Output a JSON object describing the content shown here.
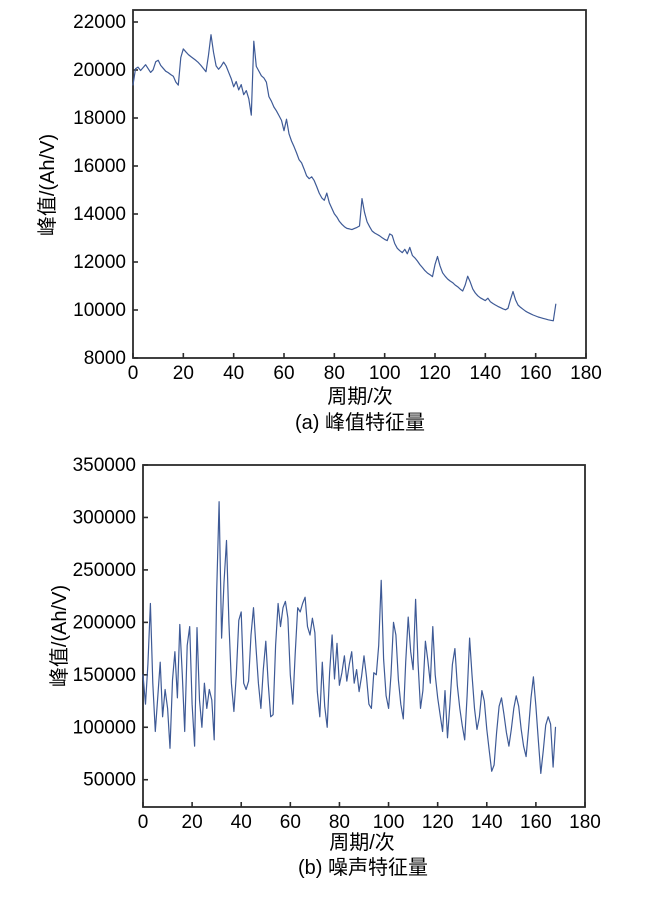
{
  "figure": {
    "background": "#ffffff",
    "line_color": "#3e5a96",
    "axis_color": "#2b2b2b",
    "text_color": "#000000"
  },
  "chart_data": [
    {
      "type": "line",
      "title": "(a) 峰值特征量",
      "xlabel": "周期/次",
      "ylabel": "峰值/(Ah/V)",
      "legend": "none",
      "grid": false,
      "xlim": [
        0,
        180
      ],
      "ylim": [
        8000,
        22500
      ],
      "xticks": [
        0,
        20,
        40,
        60,
        80,
        100,
        120,
        140,
        160,
        180
      ],
      "yticks": [
        8000,
        10000,
        12000,
        14000,
        16000,
        18000,
        20000,
        22000
      ],
      "x_start": 0,
      "x_step": 1,
      "values": [
        19380,
        20050,
        20120,
        19980,
        20100,
        20220,
        20060,
        19900,
        20010,
        20340,
        20410,
        20190,
        20070,
        19950,
        19890,
        19810,
        19740,
        19500,
        19370,
        20520,
        20880,
        20760,
        20640,
        20560,
        20480,
        20400,
        20310,
        20190,
        20060,
        19930,
        20620,
        21470,
        20740,
        20170,
        20030,
        20160,
        20330,
        20170,
        19910,
        19640,
        19300,
        19520,
        19170,
        19390,
        18970,
        19140,
        18800,
        18120,
        21200,
        20150,
        19960,
        19760,
        19670,
        19490,
        18890,
        18700,
        18460,
        18300,
        18100,
        17900,
        17470,
        17950,
        17340,
        17040,
        16800,
        16540,
        16260,
        16130,
        15870,
        15590,
        15470,
        15550,
        15390,
        15140,
        14870,
        14670,
        14570,
        14870,
        14470,
        14240,
        14010,
        13870,
        13690,
        13570,
        13470,
        13400,
        13380,
        13350,
        13400,
        13440,
        13500,
        14640,
        14070,
        13670,
        13470,
        13290,
        13210,
        13150,
        13090,
        13010,
        12940,
        12890,
        13170,
        13110,
        12770,
        12570,
        12470,
        12390,
        12530,
        12340,
        12610,
        12270,
        12170,
        12040,
        11890,
        11770,
        11640,
        11540,
        11470,
        11390,
        11890,
        12230,
        11840,
        11550,
        11410,
        11290,
        11210,
        11140,
        11040,
        10970,
        10870,
        10790,
        11040,
        11410,
        11170,
        10870,
        10710,
        10590,
        10510,
        10450,
        10390,
        10490,
        10340,
        10270,
        10210,
        10150,
        10100,
        10050,
        10010,
        10070,
        10440,
        10770,
        10430,
        10210,
        10110,
        10030,
        9950,
        9890,
        9840,
        9790,
        9750,
        9710,
        9680,
        9650,
        9620,
        9590,
        9570,
        9550,
        10240
      ]
    },
    {
      "type": "line",
      "title": "(b) 噪声特征量",
      "xlabel": "周期/次",
      "ylabel": "峰值/(Ah/V)",
      "legend": "none",
      "grid": false,
      "xlim": [
        0,
        180
      ],
      "ylim": [
        24000,
        350000
      ],
      "xticks": [
        0,
        20,
        40,
        60,
        80,
        100,
        120,
        140,
        160,
        180
      ],
      "yticks": [
        50000,
        100000,
        150000,
        200000,
        250000,
        300000,
        350000
      ],
      "x_start": 0,
      "x_step": 1,
      "values": [
        150000,
        122000,
        160000,
        218000,
        142000,
        96000,
        128000,
        162000,
        110000,
        136000,
        118000,
        80000,
        145000,
        172000,
        128000,
        198000,
        150000,
        96000,
        178000,
        196000,
        122000,
        82000,
        195000,
        126000,
        100000,
        142000,
        118000,
        136000,
        126000,
        88000,
        230000,
        315000,
        185000,
        238000,
        278000,
        200000,
        142000,
        115000,
        150000,
        202000,
        210000,
        142000,
        136000,
        144000,
        188000,
        214000,
        176000,
        142000,
        118000,
        155000,
        182000,
        142000,
        110000,
        112000,
        178000,
        218000,
        196000,
        214000,
        220000,
        204000,
        150000,
        122000,
        170000,
        214000,
        210000,
        218000,
        224000,
        196000,
        188000,
        204000,
        190000,
        134000,
        110000,
        162000,
        120000,
        100000,
        152000,
        188000,
        146000,
        180000,
        140000,
        152000,
        168000,
        144000,
        160000,
        172000,
        142000,
        155000,
        134000,
        148000,
        168000,
        148000,
        122000,
        118000,
        152000,
        150000,
        178000,
        240000,
        165000,
        130000,
        118000,
        150000,
        200000,
        188000,
        145000,
        122000,
        108000,
        162000,
        205000,
        172000,
        155000,
        222000,
        162000,
        118000,
        135000,
        182000,
        164000,
        142000,
        196000,
        150000,
        128000,
        112000,
        96000,
        135000,
        90000,
        122000,
        160000,
        175000,
        140000,
        118000,
        102000,
        88000,
        130000,
        185000,
        150000,
        118000,
        98000,
        110000,
        135000,
        125000,
        98000,
        78000,
        58000,
        64000,
        95000,
        120000,
        128000,
        112000,
        95000,
        82000,
        98000,
        118000,
        130000,
        120000,
        98000,
        82000,
        72000,
        98000,
        128000,
        148000,
        120000,
        88000,
        56000,
        78000,
        102000,
        110000,
        103000,
        62000,
        100000
      ]
    }
  ]
}
